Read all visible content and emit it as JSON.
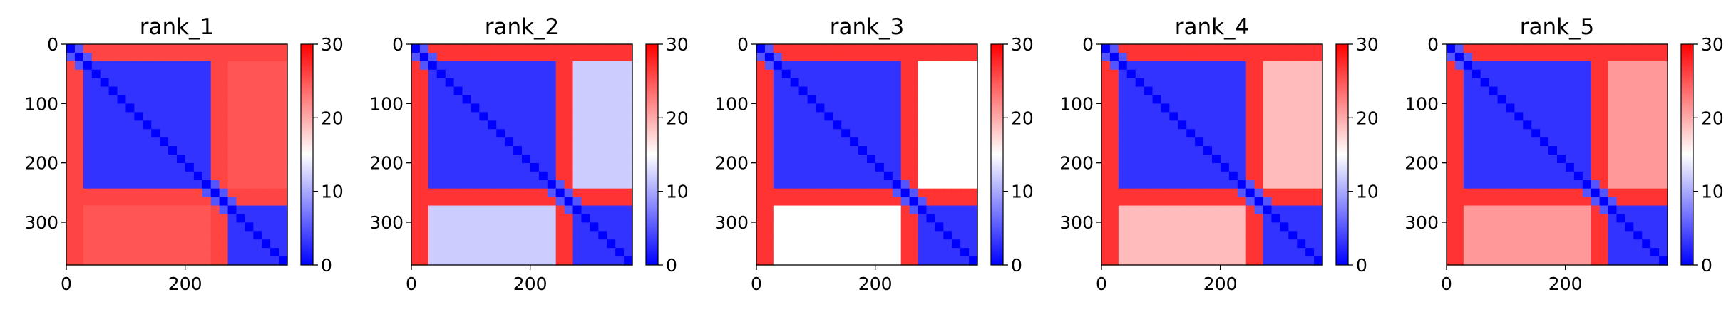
{
  "chart_data": [
    {
      "type": "heatmap",
      "title": "rank_1",
      "x_ticks": [
        0,
        200
      ],
      "y_ticks": [
        0,
        100,
        200,
        300
      ],
      "xlim": [
        0,
        372
      ],
      "ylim": [
        372,
        0
      ],
      "colorbar": {
        "ticks": [
          0,
          10,
          20,
          30
        ],
        "range": [
          0,
          30
        ],
        "colormap": "bwr"
      },
      "domain_breaks": [
        35,
        245,
        272
      ],
      "block_levels": {
        "domainA_self": 3,
        "domainB_self": 3,
        "domainA_domainB": 25,
        "linker_to_domains": 26
      }
    },
    {
      "type": "heatmap",
      "title": "rank_2",
      "x_ticks": [
        0,
        200
      ],
      "y_ticks": [
        0,
        100,
        200,
        300
      ],
      "xlim": [
        0,
        372
      ],
      "ylim": [
        372,
        0
      ],
      "colorbar": {
        "ticks": [
          0,
          10,
          20,
          30
        ],
        "range": [
          0,
          30
        ],
        "colormap": "bwr"
      },
      "domain_breaks": [
        35,
        245,
        272
      ],
      "block_levels": {
        "domainA_self": 3,
        "domainB_self": 3,
        "domainA_domainB": 12,
        "linker_to_domains": 27
      }
    },
    {
      "type": "heatmap",
      "title": "rank_3",
      "x_ticks": [
        0,
        200
      ],
      "y_ticks": [
        0,
        100,
        200,
        300
      ],
      "xlim": [
        0,
        372
      ],
      "ylim": [
        372,
        0
      ],
      "colorbar": {
        "ticks": [
          0,
          10,
          20,
          30
        ],
        "range": [
          0,
          30
        ],
        "colormap": "bwr"
      },
      "domain_breaks": [
        35,
        245,
        272
      ],
      "block_levels": {
        "domainA_self": 3,
        "domainB_self": 3,
        "domainA_domainB": 15,
        "linker_to_domains": 27
      }
    },
    {
      "type": "heatmap",
      "title": "rank_4",
      "x_ticks": [
        0,
        200
      ],
      "y_ticks": [
        0,
        100,
        200,
        300
      ],
      "xlim": [
        0,
        372
      ],
      "ylim": [
        372,
        0
      ],
      "colorbar": {
        "ticks": [
          0,
          10,
          20,
          30
        ],
        "range": [
          0,
          30
        ],
        "colormap": "bwr"
      },
      "domain_breaks": [
        35,
        245,
        272
      ],
      "block_levels": {
        "domainA_self": 3,
        "domainB_self": 3,
        "domainA_domainB": 19,
        "linker_to_domains": 27
      }
    },
    {
      "type": "heatmap",
      "title": "rank_5",
      "x_ticks": [
        0,
        200
      ],
      "y_ticks": [
        0,
        100,
        200,
        300
      ],
      "xlim": [
        0,
        372
      ],
      "ylim": [
        372,
        0
      ],
      "colorbar": {
        "ticks": [
          0,
          10,
          20,
          30
        ],
        "range": [
          0,
          30
        ],
        "colormap": "bwr"
      },
      "domain_breaks": [
        35,
        245,
        272
      ],
      "block_levels": {
        "domainA_self": 3,
        "domainB_self": 3,
        "domainA_domainB": 21,
        "linker_to_domains": 27
      }
    }
  ]
}
